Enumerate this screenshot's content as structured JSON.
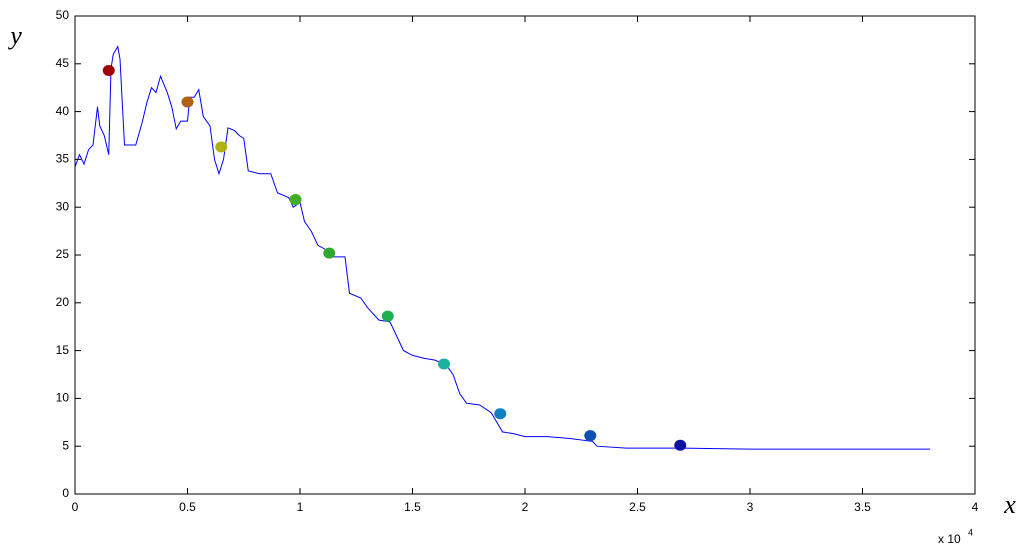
{
  "chart_data": {
    "type": "line",
    "xlabel": "x",
    "ylabel": "y",
    "x_offset_text": "x 10",
    "x_offset_exponent": "4",
    "xlim": [
      0,
      4
    ],
    "xticks": [
      0,
      0.5,
      1,
      1.5,
      2,
      2.5,
      3,
      3.5,
      4
    ],
    "ylim": [
      0,
      50
    ],
    "yticks": [
      0,
      5,
      10,
      15,
      20,
      25,
      30,
      35,
      40,
      45,
      50
    ],
    "grid": false,
    "x": [
      0,
      0.02,
      0.04,
      0.06,
      0.08,
      0.1,
      0.11,
      0.13,
      0.15,
      0.16,
      0.17,
      0.19,
      0.2,
      0.22,
      0.27,
      0.3,
      0.32,
      0.34,
      0.36,
      0.38,
      0.41,
      0.43,
      0.45,
      0.47,
      0.5,
      0.51,
      0.53,
      0.55,
      0.57,
      0.6,
      0.62,
      0.64,
      0.66,
      0.68,
      0.71,
      0.73,
      0.75,
      0.77,
      0.82,
      0.87,
      0.9,
      0.95,
      0.97,
      1.0,
      1.02,
      1.05,
      1.08,
      1.12,
      1.15,
      1.2,
      1.22,
      1.27,
      1.3,
      1.35,
      1.4,
      1.43,
      1.46,
      1.5,
      1.55,
      1.6,
      1.65,
      1.68,
      1.71,
      1.74,
      1.8,
      1.85,
      1.9,
      1.95,
      2.0,
      2.1,
      2.2,
      2.3,
      2.32,
      2.45,
      2.7,
      3.0,
      3.5,
      3.8
    ],
    "series": [
      {
        "color": "#0000ff",
        "values": [
          34.2,
          35.5,
          34.5,
          36,
          36.5,
          40.5,
          38.5,
          37.5,
          35.5,
          44.5,
          46,
          46.8,
          45.5,
          36.5,
          36.5,
          39,
          41,
          42.5,
          42,
          43.7,
          42,
          40.5,
          38.2,
          39,
          39,
          41.5,
          41.5,
          42.3,
          39.5,
          38.5,
          35,
          33.5,
          35,
          38.3,
          38,
          37.5,
          37.2,
          33.8,
          33.5,
          33.5,
          31.5,
          31,
          30,
          30.5,
          28.5,
          27.5,
          26,
          25.5,
          24.8,
          24.8,
          21,
          20.5,
          19.5,
          18.2,
          18,
          16.5,
          15,
          14.5,
          14.2,
          14,
          13.5,
          12.5,
          10.5,
          9.5,
          9.3,
          8.5,
          6.5,
          6.3,
          6.0,
          6.0,
          5.8,
          5.5,
          5.0,
          4.8,
          4.8,
          4.7,
          4.7,
          4.7
        ]
      }
    ],
    "points": {
      "x": [
        0.15,
        0.5,
        0.65,
        0.98,
        1.13,
        1.39,
        1.64,
        1.89,
        2.29,
        2.69
      ],
      "values": [
        44.3,
        41,
        36.3,
        30.8,
        25.2,
        18.6,
        13.6,
        8.4,
        6.1,
        5.1
      ],
      "colors": [
        "#a00000",
        "#b06010",
        "#b0b010",
        "#40b020",
        "#30a830",
        "#20b050",
        "#20b0a0",
        "#1080c0",
        "#1050b0",
        "#1010a0"
      ]
    }
  }
}
